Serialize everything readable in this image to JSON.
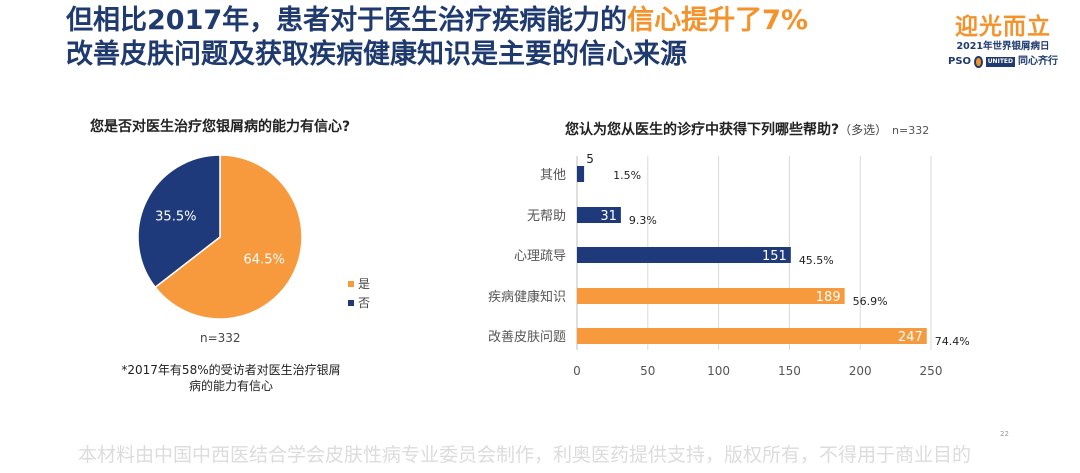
{
  "header": {
    "title_line1_prefix": "但相比2017年，患者对于医生治疗疾病能力的",
    "title_line1_highlight": "信心提升了7%",
    "title_line2": "改善皮肤问题及获取疾病健康知识是主要的信心来源"
  },
  "logo": {
    "main": "迎光而立",
    "sub": "2021年世界银屑病日",
    "pso": "PSO",
    "united": "UNITED",
    "slogan": "同心齐行"
  },
  "left_panel": {
    "question": "您是否对医生治疗您银屑病的能力有信心?",
    "n": "n=332",
    "footnote": "*2017年有58%的受访者对医生治疗银屑病的能力有信心"
  },
  "right_panel": {
    "question": "您认为您从医生的诊疗中获得下列哪些帮助?",
    "paren": "（多选）",
    "n": "n=332"
  },
  "chart_data": [
    {
      "type": "pie",
      "title": "您是否对医生治疗您银屑病的能力有信心?",
      "categories": [
        "是",
        "否"
      ],
      "values": [
        64.5,
        35.5
      ],
      "labels": [
        "64.5%",
        "35.5%"
      ],
      "colors": [
        "#f79a3e",
        "#1f3a7a"
      ],
      "legend_position": "right"
    },
    {
      "type": "bar",
      "orientation": "horizontal",
      "title": "您认为您从医生的诊疗中获得下列哪些帮助?（多选）",
      "categories": [
        "其他",
        "无帮助",
        "心理疏导",
        "疾病健康知识",
        "改善皮肤问题"
      ],
      "values": [
        5,
        31,
        151,
        189,
        247
      ],
      "percent_labels": [
        "1.5%",
        "9.3%",
        "45.5%",
        "56.9%",
        "74.4%"
      ],
      "colors": [
        "#1f3a7a",
        "#1f3a7a",
        "#1f3a7a",
        "#f79a3e",
        "#f79a3e"
      ],
      "xlim": [
        0,
        250
      ],
      "xticks": [
        0,
        50,
        100,
        150,
        200,
        250
      ],
      "grid": true
    }
  ],
  "footer": {
    "disclaimer": "本材料由中国中西医结合学会皮肤性病专业委员会制作，利奥医药提供支持，版权所有，不得用于商业目的",
    "page": "22"
  }
}
